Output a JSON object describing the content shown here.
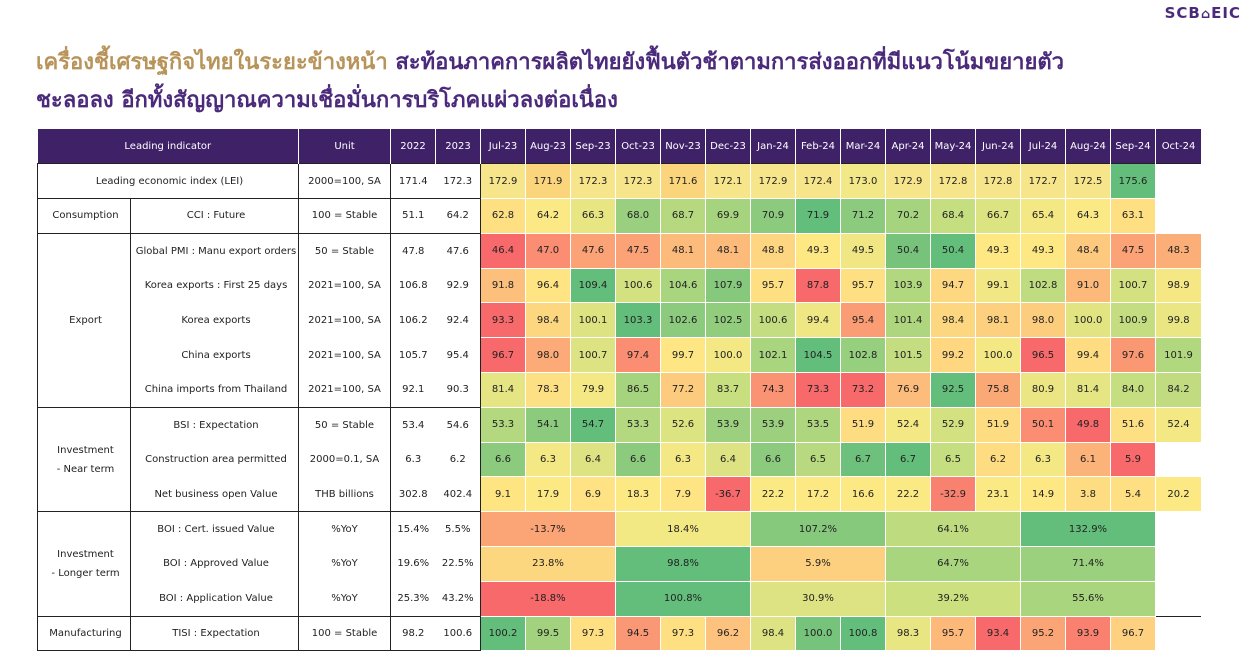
{
  "brand": {
    "text": "SCB",
    "mark": "⌂",
    "suffix": "EIC"
  },
  "title": {
    "part1": "เครื่องชี้เศรษฐกิจไทยในระยะข้างหน้า",
    "part2": " สะท้อนภาคการผลิตไทยยังฟื้นตัวช้าตามการส่งออกที่มีแนวโน้มขยายตัว",
    "line2": "ชะลอลง อีกทั้งสัญญาณความเชื่อมั่นการบริโภคแผ่วลงต่อเนื่อง"
  },
  "header": {
    "indicator": "Leading indicator",
    "unit": "Unit",
    "periods": [
      "2022",
      "2023",
      "Jul-23",
      "Aug-23",
      "Sep-23",
      "Oct-23",
      "Nov-23",
      "Dec-23",
      "Jan-24",
      "Feb-24",
      "Mar-24",
      "Apr-24",
      "May-24",
      "Jun-24",
      "Jul-24",
      "Aug-24",
      "Sep-24",
      "Oct-24"
    ]
  },
  "groups": {
    "consumption": "Consumption",
    "export": "Export",
    "inv_near_1": "Investment",
    "inv_near_2": " - Near term",
    "inv_long_1": "Investment",
    "inv_long_2": " - Longer term",
    "manufacturing": "Manufacturing"
  },
  "rows": {
    "lei": {
      "name": "Leading economic index (LEI)",
      "unit": "2000=100, SA",
      "y2022": "171.4",
      "y2023": "172.3",
      "cells": [
        "172.9",
        "171.9",
        "172.3",
        "172.3",
        "171.6",
        "172.1",
        "172.9",
        "172.4",
        "173.0",
        "172.9",
        "172.8",
        "172.8",
        "172.7",
        "172.5",
        "175.6",
        ""
      ],
      "colors": [
        "#f6e58a",
        "#fbd57c",
        "#f6e58a",
        "#f6e58a",
        "#fbd57c",
        "#f6e58a",
        "#f6e58a",
        "#f6e58a",
        "#f3e888",
        "#f6e58a",
        "#f6e58a",
        "#f6e58a",
        "#f6e58a",
        "#f6e58a",
        "#63be7b",
        null
      ]
    },
    "cci": {
      "name": "CCI : Future",
      "unit": "100 = Stable",
      "y2022": "51.1",
      "y2023": "64.2",
      "cells": [
        "62.8",
        "64.2",
        "66.3",
        "68.0",
        "68.7",
        "69.9",
        "70.9",
        "71.9",
        "71.2",
        "70.2",
        "68.4",
        "66.7",
        "65.4",
        "64.3",
        "63.1",
        ""
      ],
      "colors": [
        "#fee083",
        "#fbe985",
        "#e8e683",
        "#99cf7e",
        "#b6d97f",
        "#a6d47e",
        "#8ccb7e",
        "#63be7b",
        "#8ccb7e",
        "#a6d47e",
        "#c5de80",
        "#dce381",
        "#f3e884",
        "#fbe985",
        "#fee083",
        null
      ]
    },
    "pmi": {
      "name": "Global PMI : Manu export orders",
      "unit": "50 = Stable",
      "y2022": "47.8",
      "y2023": "47.6",
      "cells": [
        "46.4",
        "47.0",
        "47.6",
        "47.5",
        "48.1",
        "48.1",
        "48.8",
        "49.3",
        "49.5",
        "50.4",
        "50.4",
        "49.3",
        "49.3",
        "48.4",
        "47.5",
        "48.3"
      ],
      "colors": [
        "#f8696b",
        "#fa8d72",
        "#fba276",
        "#fba276",
        "#fcbb7b",
        "#fcbb7b",
        "#fed580",
        "#fee883",
        "#f0e784",
        "#77c37c",
        "#63be7b",
        "#fee883",
        "#fee883",
        "#fdc97e",
        "#fba276",
        "#fcae78"
      ]
    },
    "kor25": {
      "name": "Korea exports : First 25 days",
      "unit": "2021=100, SA",
      "y2022": "106.8",
      "y2023": "92.9",
      "cells": [
        "91.8",
        "96.4",
        "109.4",
        "100.6",
        "104.6",
        "107.9",
        "95.7",
        "87.8",
        "95.7",
        "103.9",
        "94.7",
        "99.1",
        "102.8",
        "91.0",
        "100.7",
        "98.9"
      ],
      "colors": [
        "#fdbf7c",
        "#fee483",
        "#63be7b",
        "#d3e181",
        "#a9d57f",
        "#86c97d",
        "#fee082",
        "#f8696b",
        "#fee082",
        "#b2d87f",
        "#fed881",
        "#f1e784",
        "#c0dc80",
        "#fdb97a",
        "#d3e181",
        "#f5e884"
      ]
    },
    "kor": {
      "name": "Korea exports",
      "unit": "2021=100, SA",
      "y2022": "106.2",
      "y2023": "92.4",
      "cells": [
        "93.3",
        "98.4",
        "100.1",
        "103.3",
        "102.6",
        "102.5",
        "100.6",
        "99.4",
        "95.4",
        "101.4",
        "98.4",
        "98.1",
        "98.0",
        "100.0",
        "100.9",
        "99.8"
      ],
      "colors": [
        "#f8696b",
        "#fdd780",
        "#dee382",
        "#63be7b",
        "#8ccb7e",
        "#92cd7e",
        "#c4dd80",
        "#efe784",
        "#fa9d75",
        "#aed67f",
        "#fdd780",
        "#fdd07f",
        "#fdcd7e",
        "#e2e482",
        "#c4dd80",
        "#ebe684"
      ]
    },
    "chn": {
      "name": "China exports",
      "unit": "2021=100, SA",
      "y2022": "105.7",
      "y2023": "95.4",
      "cells": [
        "96.7",
        "98.0",
        "100.7",
        "97.4",
        "99.7",
        "100.0",
        "102.1",
        "104.5",
        "102.8",
        "101.5",
        "99.2",
        "100.0",
        "96.5",
        "99.4",
        "97.6",
        "101.9"
      ],
      "colors": [
        "#f8696b",
        "#fcaa77",
        "#dde382",
        "#fa8d72",
        "#fde683",
        "#f3e884",
        "#a9d57f",
        "#63be7b",
        "#96cf7e",
        "#c3dd80",
        "#fed780",
        "#f3e884",
        "#f8696b",
        "#fedc81",
        "#fb9874",
        "#b2d87f"
      ]
    },
    "chnimp": {
      "name": "China imports from Thailand",
      "unit": "2021=100, SA",
      "y2022": "92.1",
      "y2023": "90.3",
      "cells": [
        "81.4",
        "78.3",
        "79.9",
        "86.5",
        "77.2",
        "83.7",
        "74.3",
        "73.3",
        "73.2",
        "76.9",
        "92.5",
        "75.8",
        "80.9",
        "81.4",
        "84.0",
        "84.2"
      ],
      "colors": [
        "#e6e583",
        "#fde083",
        "#f3e884",
        "#a6d47e",
        "#fdcb7e",
        "#c8df80",
        "#fa9373",
        "#f8696b",
        "#f8696b",
        "#fcbc7b",
        "#63be7b",
        "#fba877",
        "#ebe683",
        "#e6e583",
        "#c5de80",
        "#c1dc80"
      ]
    },
    "bsi": {
      "name": "BSI : Expectation",
      "unit": "50 = Stable",
      "y2022": "53.4",
      "y2023": "54.6",
      "cells": [
        "53.3",
        "54.1",
        "54.7",
        "53.3",
        "52.6",
        "53.9",
        "53.9",
        "53.5",
        "51.9",
        "52.4",
        "52.9",
        "51.9",
        "50.1",
        "49.8",
        "51.6",
        "52.4"
      ],
      "colors": [
        "#b3d87f",
        "#8ccb7e",
        "#63be7b",
        "#b3d87f",
        "#dce381",
        "#9ccf7e",
        "#9ccf7e",
        "#aed67f",
        "#fedd82",
        "#f3e884",
        "#d3e181",
        "#fedd82",
        "#fa8d72",
        "#f8696b",
        "#fde083",
        "#f3e884"
      ]
    },
    "cons": {
      "name": "Construction area permitted",
      "unit": "2000=0.1, SA",
      "y2022": "6.3",
      "y2023": "6.2",
      "cells": [
        "6.6",
        "6.3",
        "6.4",
        "6.6",
        "6.3",
        "6.4",
        "6.6",
        "6.5",
        "6.7",
        "6.7",
        "6.5",
        "6.2",
        "6.3",
        "6.1",
        "5.9",
        ""
      ],
      "colors": [
        "#8ccb7e",
        "#f3e884",
        "#dde382",
        "#8ccb7e",
        "#f3e884",
        "#dde382",
        "#8ccb7e",
        "#b8d97f",
        "#6ec17c",
        "#63be7b",
        "#c5de80",
        "#fedc81",
        "#f3e884",
        "#fcb37a",
        "#f8696b",
        null
      ]
    },
    "nbo": {
      "name": "Net business open Value",
      "unit": "THB billions",
      "y2022": "302.8",
      "y2023": "402.4",
      "cells": [
        "9.1",
        "17.9",
        "6.9",
        "18.3",
        "7.9",
        "-36.7",
        "22.2",
        "17.2",
        "16.6",
        "22.2",
        "-32.9",
        "23.1",
        "14.9",
        "3.8",
        "5.4",
        "20.2"
      ],
      "colors": [
        "#fee582",
        "#fce984",
        "#fee283",
        "#fce984",
        "#fee482",
        "#f8696b",
        "#fbe984",
        "#fde984",
        "#fde984",
        "#fbe984",
        "#f98170",
        "#fbe984",
        "#fde884",
        "#fedd82",
        "#fee082",
        "#fce984"
      ]
    },
    "boicert": {
      "name": "BOI : Cert. issued Value",
      "unit": "%YoY",
      "y2022": "15.4%",
      "y2023": "5.5%",
      "spans": [
        {
          "text": "-13.7%",
          "color": "#fba577"
        },
        {
          "text": "18.4%",
          "color": "#f2e884"
        },
        {
          "text": "107.2%",
          "color": "#86c97d"
        },
        {
          "text": "64.1%",
          "color": "#bfdb80"
        },
        {
          "text": "132.9%",
          "color": "#63be7b"
        }
      ]
    },
    "boiapp": {
      "name": "BOI : Approved Value",
      "unit": "%YoY",
      "y2022": "19.6%",
      "y2023": "22.5%",
      "spans": [
        {
          "text": "23.8%",
          "color": "#fdd780"
        },
        {
          "text": "98.8%",
          "color": "#63be7b"
        },
        {
          "text": "5.9%",
          "color": "#fcd07f"
        },
        {
          "text": "64.7%",
          "color": "#a9d57f"
        },
        {
          "text": "71.4%",
          "color": "#9ad07e"
        }
      ]
    },
    "boiappl": {
      "name": "BOI : Application Value",
      "unit": "%YoY",
      "y2022": "25.3%",
      "y2023": "43.2%",
      "spans": [
        {
          "text": "-18.8%",
          "color": "#f8696b"
        },
        {
          "text": "100.8%",
          "color": "#63be7b"
        },
        {
          "text": "30.9%",
          "color": "#dde382"
        },
        {
          "text": "39.2%",
          "color": "#cce080"
        },
        {
          "text": "55.6%",
          "color": "#aad57f"
        }
      ]
    },
    "tisi": {
      "name": "TISI : Expectation",
      "unit": "100 = Stable",
      "y2022": "98.2",
      "y2023": "100.6",
      "cells": [
        "100.2",
        "99.5",
        "97.3",
        "94.5",
        "97.3",
        "96.2",
        "98.4",
        "100.0",
        "100.8",
        "98.3",
        "95.7",
        "93.4",
        "95.2",
        "93.9",
        "96.7",
        ""
      ],
      "colors": [
        "#63be7b",
        "#a2d27e",
        "#fee082",
        "#fa9774",
        "#fee082",
        "#fdc27d",
        "#dde382",
        "#76c37c",
        "#63be7b",
        "#e8e683",
        "#fcb97a",
        "#f8696b",
        "#fba476",
        "#fa8170",
        "#fed180",
        null
      ]
    }
  }
}
